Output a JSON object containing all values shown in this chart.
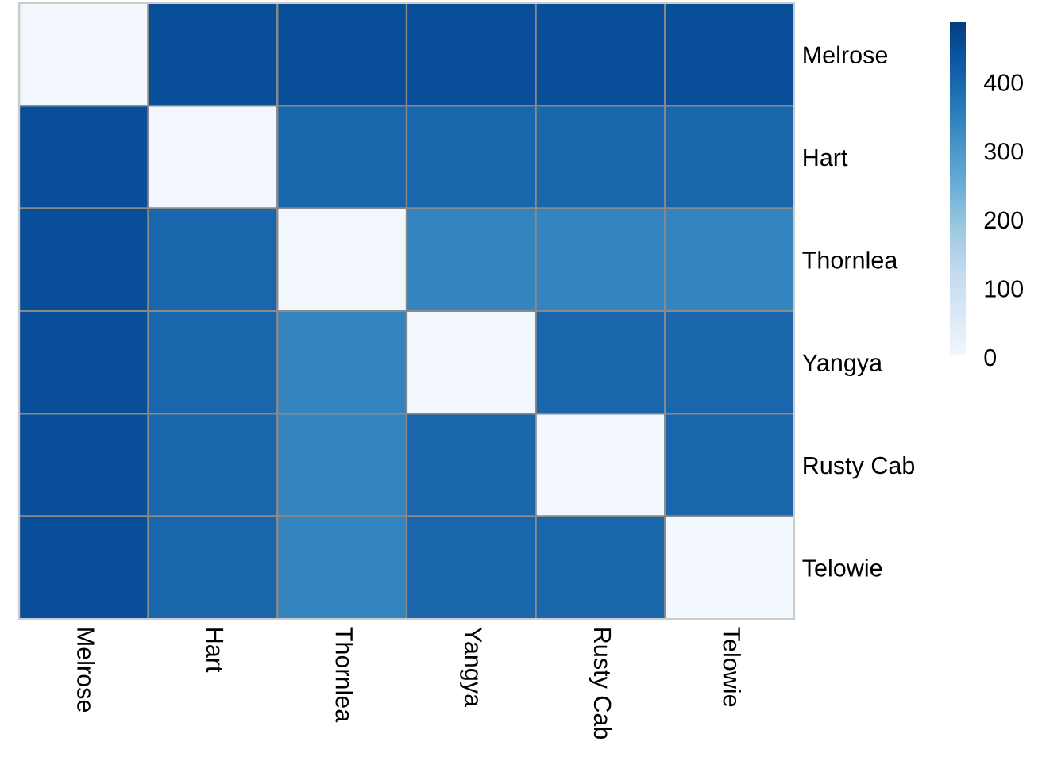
{
  "chart_data": {
    "type": "heatmap",
    "categories": [
      "Melrose",
      "Hart",
      "Thornlea",
      "Yangya",
      "Rusty Cab",
      "Telowie"
    ],
    "y_categories": [
      "Melrose",
      "Hart",
      "Thornlea",
      "Yangya",
      "Rusty Cab",
      "Telowie"
    ],
    "cells": [
      [
        0,
        450,
        450,
        450,
        450,
        450
      ],
      [
        450,
        0,
        400,
        400,
        400,
        400
      ],
      [
        450,
        400,
        0,
        340,
        340,
        340
      ],
      [
        450,
        400,
        340,
        0,
        400,
        400
      ],
      [
        450,
        400,
        340,
        400,
        0,
        400
      ],
      [
        450,
        400,
        340,
        400,
        400,
        0
      ]
    ],
    "clim": [
      0,
      485
    ],
    "cticks": [
      0,
      100,
      200,
      300,
      400
    ]
  }
}
